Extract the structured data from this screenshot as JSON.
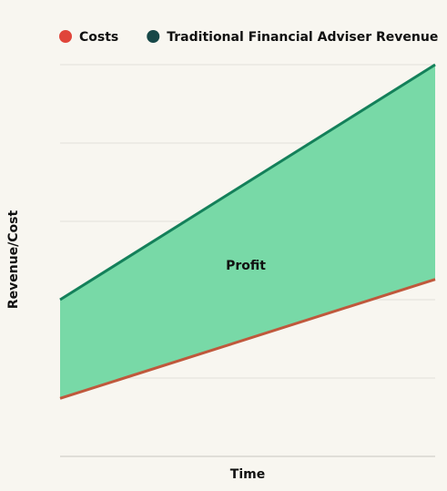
{
  "chart_data": {
    "type": "line",
    "x_label": "Time",
    "y_label": "Revenue/Cost",
    "x": [
      0,
      1
    ],
    "xlim": [
      0,
      1
    ],
    "series": [
      {
        "name": "Costs",
        "color": "#e0453a",
        "line_color": "#c0583c",
        "values": [
          0.74,
          2.26
        ]
      },
      {
        "name": "Traditional Financial Adviser Revenue",
        "color": "#174848",
        "line_color": "#14805a",
        "values": [
          2.0,
          5.0
        ]
      }
    ],
    "fill_between_color": "#78d9a7",
    "annotation": "Profit",
    "ylim": [
      0,
      5
    ],
    "yticks": [
      0,
      1,
      2,
      3,
      4,
      5
    ],
    "grid": true,
    "tick_labels": false,
    "legend": "top"
  }
}
